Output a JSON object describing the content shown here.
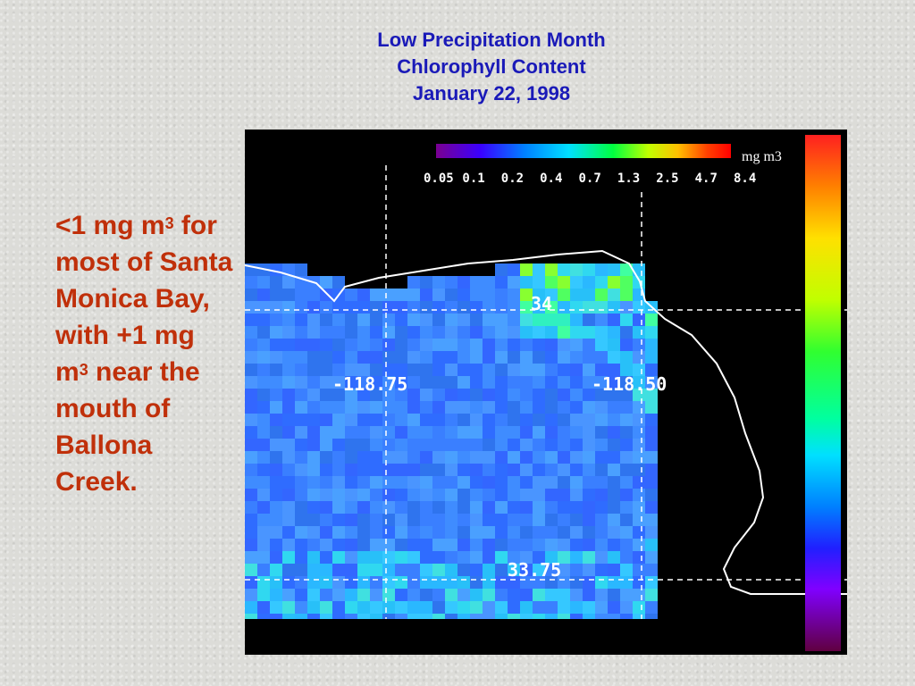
{
  "title": {
    "line1": "Low Precipitation Month",
    "line2": "Chlorophyll Content",
    "line3": "January 22, 1998"
  },
  "caption": {
    "part1": "<1 mg m",
    "sup1": "3",
    "part2": " for most of Santa Monica Bay, with +1 mg m",
    "sup2": "3",
    "part3": " near the mouth of Ballona Creek."
  },
  "colorbar": {
    "ticks": [
      "0.05",
      "0.1",
      "0.2",
      "0.4",
      "0.7",
      "1.3",
      "2.5",
      "4.7",
      "8.4"
    ],
    "unit": "mg m3"
  },
  "grid_labels": {
    "lat_north": "34",
    "lat_south": "33.75",
    "lon_west": "-118.75",
    "lon_east": "-118.50"
  },
  "colors": {
    "title": "#1a1ab8",
    "caption": "#c0300a",
    "ocean_low": "#3a7fff",
    "ocean_mid": "#2ad0ff",
    "ocean_high": "#5aff3a"
  }
}
